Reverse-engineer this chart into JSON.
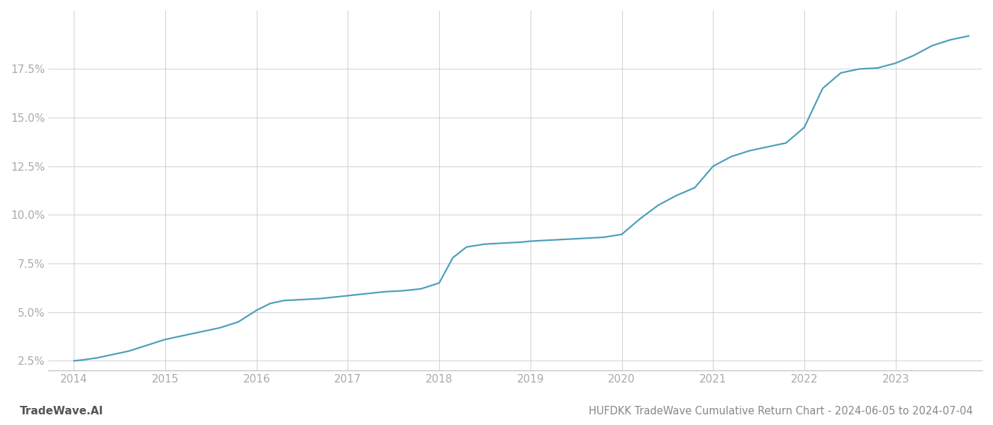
{
  "title": "HUFDKK TradeWave Cumulative Return Chart - 2024-06-05 to 2024-07-04",
  "watermark": "TradeWave.AI",
  "line_color": "#4d9fbc",
  "background_color": "#ffffff",
  "grid_color": "#cccccc",
  "x_values": [
    2014.0,
    2014.1,
    2014.25,
    2014.4,
    2014.6,
    2014.8,
    2015.0,
    2015.2,
    2015.4,
    2015.6,
    2015.8,
    2016.0,
    2016.15,
    2016.3,
    2016.5,
    2016.7,
    2016.9,
    2017.0,
    2017.2,
    2017.4,
    2017.6,
    2017.8,
    2018.0,
    2018.15,
    2018.3,
    2018.5,
    2018.7,
    2018.9,
    2019.0,
    2019.2,
    2019.4,
    2019.6,
    2019.8,
    2020.0,
    2020.2,
    2020.4,
    2020.6,
    2020.8,
    2021.0,
    2021.2,
    2021.4,
    2021.6,
    2021.8,
    2022.0,
    2022.2,
    2022.4,
    2022.6,
    2022.8,
    2023.0,
    2023.2,
    2023.4,
    2023.6,
    2023.8
  ],
  "y_values": [
    2.5,
    2.55,
    2.65,
    2.8,
    3.0,
    3.3,
    3.6,
    3.8,
    4.0,
    4.2,
    4.5,
    5.1,
    5.45,
    5.6,
    5.65,
    5.7,
    5.8,
    5.85,
    5.95,
    6.05,
    6.1,
    6.2,
    6.5,
    7.8,
    8.35,
    8.5,
    8.55,
    8.6,
    8.65,
    8.7,
    8.75,
    8.8,
    8.85,
    9.0,
    9.8,
    10.5,
    11.0,
    11.4,
    12.5,
    13.0,
    13.3,
    13.5,
    13.7,
    14.5,
    16.5,
    17.3,
    17.5,
    17.55,
    17.8,
    18.2,
    18.7,
    19.0,
    19.2
  ],
  "ylim": [
    2.0,
    20.5
  ],
  "xlim": [
    2013.72,
    2023.95
  ],
  "yticks": [
    2.5,
    5.0,
    7.5,
    10.0,
    12.5,
    15.0,
    17.5
  ],
  "xticks": [
    2014,
    2015,
    2016,
    2017,
    2018,
    2019,
    2020,
    2021,
    2022,
    2023
  ],
  "tick_label_color": "#aaaaaa",
  "title_color": "#888888",
  "watermark_color": "#555555",
  "line_width": 1.6,
  "title_fontsize": 10.5,
  "tick_fontsize": 11,
  "watermark_fontsize": 11
}
